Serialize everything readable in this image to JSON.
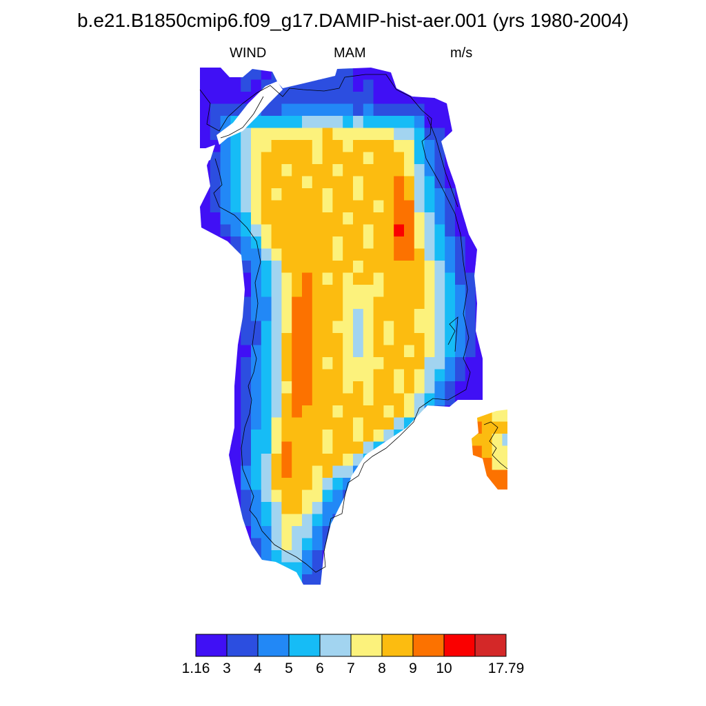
{
  "title": "b.e21.B1850cmip6.f09_g17.DAMIP-hist-aer.001 (yrs 1980-2004)",
  "subtitle": {
    "left": "WIND",
    "center": "MAM",
    "right": "m/s"
  },
  "colorbar": {
    "colors": [
      "#4010f5",
      "#2c4ee0",
      "#2288f6",
      "#16bcf6",
      "#a2d4f0",
      "#fcf27c",
      "#fcbc10",
      "#fc7200",
      "#fa0000",
      "#d42828"
    ],
    "labels": [
      "1.16",
      "3",
      "4",
      "5",
      "6",
      "7",
      "8",
      "9",
      "10",
      "17.79"
    ]
  },
  "map": {
    "region": "Greenland",
    "colors": [
      "#4010f5",
      "#2c4ee0",
      "#2288f6",
      "#16bcf6",
      "#a2d4f0",
      "#fcf27c",
      "#fcbc10",
      "#fc7200",
      "#fa0000",
      "#d42828"
    ]
  }
}
